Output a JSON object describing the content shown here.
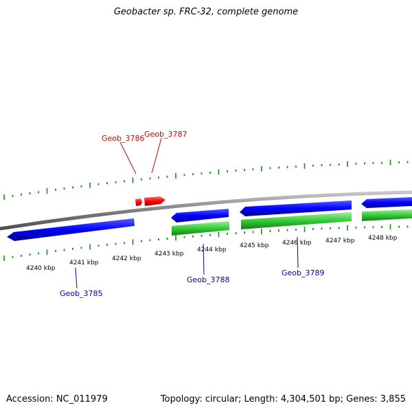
{
  "title": "Geobacter sp. FRC-32, complete genome",
  "footer": {
    "accession": "Accession: NC_011979",
    "summary": "Topology: circular; Length: 4,304,501 bp; Genes: 3,855"
  },
  "colors": {
    "backbone": "#7f7f7f",
    "tick": "#1a8a1a",
    "gene_forward": "#ff0000",
    "gene_reverse": "#0000ff",
    "gene_other": "#33cc33",
    "label_forward": "#cc0000",
    "label_reverse": "#0000aa"
  },
  "scale_labels": [
    "4240 kbp",
    "4241 kbp",
    "4242 kbp",
    "4243 kbp",
    "4244 kbp",
    "4245 kbp",
    "4246 kbp",
    "4247 kbp",
    "4248 kbp"
  ],
  "gene_labels": {
    "g3786": "Geob_3786",
    "g3787": "Geob_3787",
    "g3785": "Geob_3785",
    "g3788": "Geob_3788",
    "g3789": "Geob_3789"
  }
}
